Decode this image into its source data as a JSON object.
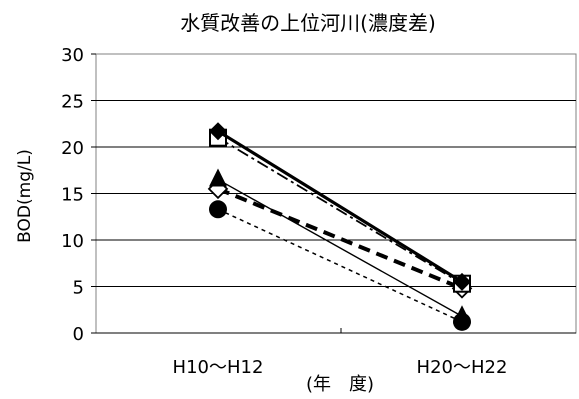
{
  "chart_data": {
    "type": "line",
    "title": "水質改善の上位河川(濃度差)",
    "xlabel": "(年　度)",
    "ylabel": "BOD(mg/L)",
    "ylim": [
      0,
      30
    ],
    "yticks": [
      0,
      5,
      10,
      15,
      20,
      25,
      30
    ],
    "categories": [
      "H10〜H12",
      "H20〜H22"
    ],
    "grid": true,
    "legend": "none",
    "series": [
      {
        "marker": "diamond-filled",
        "line": "thick-solid",
        "values": [
          21.7,
          5.5
        ]
      },
      {
        "marker": "square-open",
        "line": "dash-dot",
        "values": [
          21.0,
          5.3
        ]
      },
      {
        "marker": "triangle-filled",
        "line": "thin-solid",
        "values": [
          16.5,
          1.8
        ]
      },
      {
        "marker": "diamond-open",
        "line": "thick-dashed",
        "values": [
          15.5,
          4.8
        ]
      },
      {
        "marker": "circle-filled",
        "line": "dotted",
        "values": [
          13.3,
          1.2
        ]
      }
    ]
  }
}
